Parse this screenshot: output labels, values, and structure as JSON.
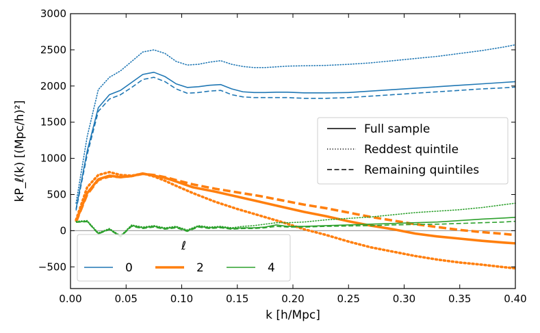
{
  "chart_data": {
    "type": "line",
    "title": "",
    "xlabel": "k [h/Mpc]",
    "ylabel": "kP_ℓ(k) [(Mpc/h)²]",
    "xlim": [
      0.0,
      0.4
    ],
    "ylim": [
      -800,
      3000
    ],
    "xticks": [
      0.0,
      0.05,
      0.1,
      0.15,
      0.2,
      0.25,
      0.3,
      0.35,
      0.4
    ],
    "xtick_labels": [
      "0.00",
      "0.05",
      "0.10",
      "0.15",
      "0.20",
      "0.25",
      "0.30",
      "0.35",
      "0.40"
    ],
    "yticks": [
      -500,
      0,
      500,
      1000,
      1500,
      2000,
      2500,
      3000
    ],
    "ytick_labels": [
      "−500",
      "0",
      "500",
      "1000",
      "1500",
      "2000",
      "2500",
      "3000"
    ],
    "grid": false,
    "zero_line": true,
    "colors": {
      "l0": "#1f77b4",
      "l2": "#ff7f0e",
      "l4": "#2ca02c",
      "zero": "#a0a0a0"
    },
    "legend_styles": {
      "position": "center-right",
      "entries": [
        {
          "label": "Full sample",
          "style": "solid"
        },
        {
          "label": "Reddest quintile",
          "style": "dotted"
        },
        {
          "label": "Remaining quintiles",
          "style": "dashed"
        }
      ]
    },
    "legend_multipoles": {
      "position": "lower-left",
      "title": "ℓ",
      "entries": [
        {
          "label": "0",
          "color": "#1f77b4",
          "width": "normal"
        },
        {
          "label": "2",
          "color": "#ff7f0e",
          "width": "thick"
        },
        {
          "label": "4",
          "color": "#2ca02c",
          "width": "normal"
        }
      ]
    },
    "series": [
      {
        "name": "ℓ=0 Full sample",
        "multipole": 0,
        "style": "solid",
        "color": "#1f77b4",
        "x": [
          0.005,
          0.015,
          0.025,
          0.035,
          0.045,
          0.055,
          0.065,
          0.075,
          0.085,
          0.095,
          0.105,
          0.115,
          0.125,
          0.135,
          0.145,
          0.155,
          0.165,
          0.175,
          0.185,
          0.195,
          0.21,
          0.23,
          0.25,
          0.27,
          0.29,
          0.31,
          0.33,
          0.35,
          0.37,
          0.39,
          0.4
        ],
        "y": [
          300,
          1100,
          1700,
          1880,
          1940,
          2050,
          2160,
          2190,
          2130,
          2030,
          1980,
          1990,
          2010,
          2020,
          1960,
          1920,
          1910,
          1910,
          1915,
          1915,
          1905,
          1905,
          1910,
          1930,
          1950,
          1970,
          1990,
          2010,
          2030,
          2050,
          2060
        ]
      },
      {
        "name": "ℓ=0 Reddest quintile",
        "multipole": 0,
        "style": "dotted",
        "color": "#1f77b4",
        "x": [
          0.005,
          0.015,
          0.025,
          0.035,
          0.045,
          0.055,
          0.065,
          0.075,
          0.085,
          0.095,
          0.105,
          0.115,
          0.125,
          0.135,
          0.145,
          0.155,
          0.165,
          0.175,
          0.185,
          0.195,
          0.21,
          0.23,
          0.25,
          0.27,
          0.29,
          0.31,
          0.33,
          0.35,
          0.37,
          0.39,
          0.4
        ],
        "y": [
          380,
          1300,
          1950,
          2120,
          2210,
          2340,
          2470,
          2500,
          2450,
          2340,
          2290,
          2300,
          2330,
          2350,
          2300,
          2270,
          2255,
          2255,
          2265,
          2275,
          2280,
          2285,
          2300,
          2320,
          2350,
          2380,
          2410,
          2450,
          2490,
          2540,
          2570
        ]
      },
      {
        "name": "ℓ=0 Remaining quintiles",
        "multipole": 0,
        "style": "dashed",
        "color": "#1f77b4",
        "x": [
          0.005,
          0.015,
          0.025,
          0.035,
          0.045,
          0.055,
          0.065,
          0.075,
          0.085,
          0.095,
          0.105,
          0.115,
          0.125,
          0.135,
          0.145,
          0.155,
          0.165,
          0.175,
          0.185,
          0.195,
          0.21,
          0.23,
          0.25,
          0.27,
          0.29,
          0.31,
          0.33,
          0.35,
          0.37,
          0.39,
          0.4
        ],
        "y": [
          280,
          1050,
          1650,
          1820,
          1880,
          1980,
          2090,
          2120,
          2060,
          1960,
          1900,
          1910,
          1930,
          1940,
          1880,
          1850,
          1840,
          1840,
          1840,
          1840,
          1830,
          1830,
          1840,
          1860,
          1880,
          1900,
          1920,
          1940,
          1960,
          1975,
          1985
        ]
      },
      {
        "name": "ℓ=2 Full sample",
        "multipole": 2,
        "style": "solid",
        "color": "#ff7f0e",
        "x": [
          0.005,
          0.015,
          0.025,
          0.035,
          0.045,
          0.055,
          0.065,
          0.075,
          0.085,
          0.095,
          0.11,
          0.13,
          0.15,
          0.17,
          0.19,
          0.21,
          0.23,
          0.25,
          0.27,
          0.29,
          0.31,
          0.33,
          0.35,
          0.37,
          0.39,
          0.4
        ],
        "y": [
          130,
          520,
          710,
          760,
          740,
          755,
          790,
          760,
          730,
          680,
          600,
          540,
          470,
          400,
          330,
          260,
          200,
          130,
          70,
          20,
          -40,
          -80,
          -110,
          -140,
          -165,
          -175
        ]
      },
      {
        "name": "ℓ=2 Reddest quintile",
        "multipole": 2,
        "style": "dotted",
        "color": "#ff7f0e",
        "x": [
          0.005,
          0.015,
          0.025,
          0.035,
          0.045,
          0.055,
          0.065,
          0.075,
          0.085,
          0.095,
          0.11,
          0.13,
          0.15,
          0.17,
          0.19,
          0.21,
          0.23,
          0.25,
          0.27,
          0.29,
          0.31,
          0.33,
          0.35,
          0.37,
          0.39,
          0.4
        ],
        "y": [
          150,
          600,
          770,
          810,
          770,
          760,
          790,
          750,
          690,
          620,
          520,
          400,
          300,
          210,
          120,
          20,
          -60,
          -150,
          -230,
          -290,
          -350,
          -400,
          -440,
          -470,
          -505,
          -520
        ]
      },
      {
        "name": "ℓ=2 Remaining quintiles",
        "multipole": 2,
        "style": "dashed",
        "color": "#ff7f0e",
        "x": [
          0.005,
          0.015,
          0.025,
          0.035,
          0.045,
          0.055,
          0.065,
          0.075,
          0.085,
          0.095,
          0.11,
          0.13,
          0.15,
          0.17,
          0.19,
          0.21,
          0.23,
          0.25,
          0.27,
          0.29,
          0.31,
          0.33,
          0.35,
          0.37,
          0.39,
          0.4
        ],
        "y": [
          120,
          500,
          700,
          750,
          740,
          755,
          785,
          770,
          740,
          700,
          640,
          580,
          530,
          480,
          420,
          360,
          310,
          250,
          190,
          140,
          90,
          50,
          10,
          -20,
          -45,
          -60
        ]
      },
      {
        "name": "ℓ=4 Full sample",
        "multipole": 4,
        "style": "solid",
        "color": "#2ca02c",
        "x": [
          0.005,
          0.015,
          0.025,
          0.035,
          0.045,
          0.055,
          0.065,
          0.075,
          0.085,
          0.095,
          0.105,
          0.115,
          0.125,
          0.135,
          0.145,
          0.155,
          0.165,
          0.175,
          0.185,
          0.195,
          0.21,
          0.23,
          0.25,
          0.27,
          0.29,
          0.31,
          0.33,
          0.35,
          0.37,
          0.39,
          0.4
        ],
        "y": [
          120,
          130,
          -40,
          20,
          -80,
          70,
          40,
          60,
          30,
          50,
          0,
          60,
          40,
          50,
          30,
          40,
          40,
          50,
          80,
          60,
          60,
          70,
          80,
          90,
          100,
          110,
          120,
          140,
          160,
          175,
          185
        ]
      },
      {
        "name": "ℓ=4 Reddest quintile",
        "multipole": 4,
        "style": "dotted",
        "color": "#2ca02c",
        "x": [
          0.005,
          0.015,
          0.025,
          0.035,
          0.045,
          0.055,
          0.065,
          0.075,
          0.085,
          0.095,
          0.105,
          0.115,
          0.125,
          0.135,
          0.145,
          0.155,
          0.165,
          0.175,
          0.185,
          0.195,
          0.21,
          0.23,
          0.25,
          0.27,
          0.29,
          0.31,
          0.33,
          0.35,
          0.37,
          0.39,
          0.4
        ],
        "y": [
          130,
          140,
          -30,
          30,
          -70,
          80,
          50,
          70,
          40,
          60,
          10,
          70,
          50,
          60,
          40,
          60,
          70,
          90,
          110,
          110,
          120,
          150,
          170,
          190,
          220,
          250,
          270,
          290,
          320,
          360,
          380
        ]
      },
      {
        "name": "ℓ=4 Remaining quintiles",
        "multipole": 4,
        "style": "dashed",
        "color": "#2ca02c",
        "x": [
          0.005,
          0.015,
          0.025,
          0.035,
          0.045,
          0.055,
          0.065,
          0.075,
          0.085,
          0.095,
          0.105,
          0.115,
          0.125,
          0.135,
          0.145,
          0.155,
          0.165,
          0.175,
          0.185,
          0.195,
          0.21,
          0.23,
          0.25,
          0.27,
          0.29,
          0.31,
          0.33,
          0.35,
          0.37,
          0.39,
          0.4
        ],
        "y": [
          115,
          125,
          -45,
          15,
          -85,
          60,
          30,
          50,
          20,
          40,
          -10,
          50,
          30,
          40,
          20,
          30,
          30,
          40,
          60,
          50,
          50,
          60,
          65,
          70,
          80,
          85,
          90,
          100,
          110,
          120,
          130
        ]
      }
    ]
  }
}
